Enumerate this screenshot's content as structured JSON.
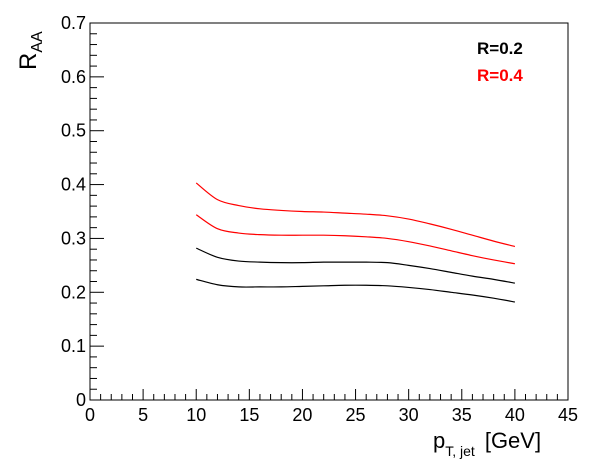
{
  "chart_data": {
    "type": "line",
    "xlabel": "p",
    "xlabel_sub": "T, jet",
    "xlabel_unit": "[GeV]",
    "ylabel": "R",
    "ylabel_sub": "AA",
    "xlim": [
      0,
      45
    ],
    "ylim": [
      0,
      0.7
    ],
    "xticks": [
      0,
      5,
      10,
      15,
      20,
      25,
      30,
      35,
      40,
      45
    ],
    "yticks": [
      0,
      0.1,
      0.2,
      0.3,
      0.4,
      0.5,
      0.6,
      0.7
    ],
    "xtick_labels": [
      "0",
      "5",
      "10",
      "15",
      "20",
      "25",
      "30",
      "35",
      "40",
      "45"
    ],
    "ytick_labels": [
      "0",
      "0.1",
      "0.2",
      "0.3",
      "0.4",
      "0.5",
      "0.6",
      "0.7"
    ],
    "grid": false,
    "legend_position": "top-right",
    "legend": [
      {
        "label": "R=0.2",
        "color": "#000000"
      },
      {
        "label": "R=0.4",
        "color": "#ff0000"
      }
    ],
    "series": [
      {
        "group": "R=0.2 upper",
        "color": "#000000",
        "x": [
          10,
          12,
          14,
          16,
          18,
          20,
          22,
          24,
          26,
          28,
          30,
          32,
          34,
          36,
          38,
          40
        ],
        "y": [
          0.282,
          0.265,
          0.258,
          0.256,
          0.255,
          0.255,
          0.256,
          0.256,
          0.256,
          0.255,
          0.25,
          0.244,
          0.237,
          0.23,
          0.224,
          0.217
        ]
      },
      {
        "group": "R=0.2 lower",
        "color": "#000000",
        "x": [
          10,
          12,
          14,
          16,
          18,
          20,
          22,
          24,
          26,
          28,
          30,
          32,
          34,
          36,
          38,
          40
        ],
        "y": [
          0.224,
          0.214,
          0.21,
          0.21,
          0.21,
          0.211,
          0.212,
          0.213,
          0.213,
          0.212,
          0.209,
          0.205,
          0.2,
          0.195,
          0.189,
          0.182
        ]
      },
      {
        "group": "R=0.4 upper",
        "color": "#ff0000",
        "x": [
          10,
          12,
          14,
          16,
          18,
          20,
          22,
          24,
          26,
          28,
          30,
          32,
          34,
          36,
          38,
          40
        ],
        "y": [
          0.403,
          0.372,
          0.361,
          0.355,
          0.352,
          0.35,
          0.349,
          0.347,
          0.345,
          0.342,
          0.336,
          0.327,
          0.317,
          0.306,
          0.295,
          0.285
        ]
      },
      {
        "group": "R=0.4 lower",
        "color": "#ff0000",
        "x": [
          10,
          12,
          14,
          16,
          18,
          20,
          22,
          24,
          26,
          28,
          30,
          32,
          34,
          36,
          38,
          40
        ],
        "y": [
          0.344,
          0.318,
          0.31,
          0.307,
          0.306,
          0.306,
          0.306,
          0.305,
          0.303,
          0.3,
          0.294,
          0.286,
          0.277,
          0.268,
          0.26,
          0.253
        ]
      }
    ]
  }
}
